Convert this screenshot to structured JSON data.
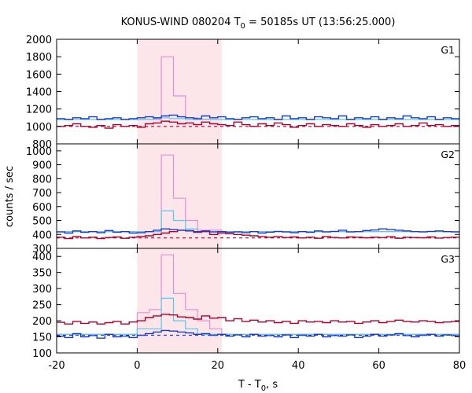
{
  "title": {
    "main": "KONUS-WIND 080204 T",
    "sub": "0",
    "rest": " = 50185s UT (13:56:25.000)"
  },
  "ylabel": "counts / sec",
  "xlabel": {
    "main": "T - T",
    "sub": "0",
    "rest": ", s"
  },
  "colors": {
    "red": "#b0002a",
    "blue": "#1a3cc8",
    "cyan": "#55c8ee",
    "pink": "#e38fd2",
    "dashed": "#b0002a",
    "dashed_blue": "#1a3cc8",
    "highlight": "#fde6ea",
    "axis": "#000000"
  },
  "chart_data": {
    "type": "line",
    "xlim": [
      -20,
      80
    ],
    "xticks": [
      "-20",
      "0",
      "20",
      "40",
      "60",
      "80"
    ],
    "xtick_values": [
      -20,
      0,
      20,
      40,
      60,
      80
    ],
    "highlight_interval": [
      0,
      21
    ],
    "bin_edges": [
      -20,
      -18,
      -16,
      -14,
      -12,
      -10,
      -8,
      -6,
      -4,
      -2,
      0,
      2,
      4,
      6,
      8,
      10,
      12,
      14,
      16,
      18,
      20,
      22,
      24,
      26,
      28,
      30,
      32,
      34,
      36,
      38,
      40,
      42,
      44,
      46,
      48,
      50,
      52,
      54,
      56,
      58,
      60,
      62,
      64,
      66,
      68,
      70,
      72,
      74,
      76,
      78,
      80
    ],
    "panels": [
      {
        "label": "G1",
        "ylim": [
          800,
          2000
        ],
        "yticks": [
          "800",
          "1000",
          "1200",
          "1400",
          "1600",
          "1800",
          "2000"
        ],
        "ytick_values": [
          800,
          1000,
          1200,
          1400,
          1600,
          1800,
          2000
        ],
        "hide_bottom_tick_label": false,
        "background_level": 1000,
        "series": [
          {
            "name": "red",
            "values": [
              1000,
              1010,
              1030,
              1000,
              990,
              1010,
              980,
              1020,
              1000,
              1010,
              990,
              1030,
              1040,
              1060,
              1050,
              1030,
              1040,
              1020,
              1050,
              1030,
              1020,
              1010,
              1050,
              1020,
              1000,
              1030,
              1010,
              1040,
              1020,
              990,
              1010,
              1030,
              1000,
              1020,
              1010,
              1000,
              1030,
              1010,
              990,
              1020,
              1000,
              1010,
              1030,
              1000,
              1010,
              1040,
              1010,
              1020,
              1000,
              1010
            ]
          },
          {
            "name": "blue",
            "values": [
              1090,
              1080,
              1100,
              1090,
              1110,
              1080,
              1090,
              1100,
              1080,
              1090,
              1100,
              1110,
              1100,
              1120,
              1130,
              1110,
              1100,
              1090,
              1120,
              1100,
              1110,
              1090,
              1080,
              1100,
              1110,
              1090,
              1100,
              1080,
              1120,
              1090,
              1100,
              1080,
              1110,
              1100,
              1090,
              1120,
              1080,
              1100,
              1090,
              1110,
              1080,
              1100,
              1090,
              1120,
              1100,
              1090,
              1110,
              1080,
              1100,
              1090
            ]
          },
          {
            "name": "cyan",
            "values": [
              1080,
              1080,
              1080,
              1080,
              1080,
              1080,
              1080,
              1080,
              1080,
              1080,
              1080,
              1080,
              1090,
              1100,
              1090,
              1090,
              1080,
              1080,
              1080,
              1080,
              1080,
              1080,
              1080,
              1080,
              1080,
              1080,
              1080,
              1080,
              1080,
              1080,
              1080,
              1080,
              1080,
              1080,
              1080,
              1080,
              1080,
              1080,
              1080,
              1080,
              1080,
              1080,
              1080,
              1080,
              1080,
              1080,
              1080,
              1080,
              1080,
              1080
            ]
          },
          {
            "name": "pink",
            "bins": [
              [
                0,
                6,
                1080
              ],
              [
                6,
                9,
                1800
              ],
              [
                9,
                12,
                1350
              ],
              [
                12,
                15,
                1100
              ],
              [
                15,
                21,
                1080
              ]
            ]
          }
        ]
      },
      {
        "label": "G2",
        "ylim": [
          300,
          1050
        ],
        "yticks": [
          "300",
          "400",
          "500",
          "600",
          "700",
          "800",
          "900",
          "1000"
        ],
        "ytick_values": [
          300,
          400,
          500,
          600,
          700,
          800,
          900,
          1000
        ],
        "hide_bottom_tick_label": false,
        "background_level": 375,
        "series": [
          {
            "name": "red",
            "values": [
              380,
              370,
              385,
              375,
              380,
              370,
              378,
              382,
              372,
              380,
              385,
              390,
              400,
              410,
              420,
              430,
              425,
              415,
              420,
              400,
              410,
              405,
              400,
              395,
              390,
              385,
              380,
              385,
              378,
              382,
              375,
              380,
              372,
              385,
              378,
              375,
              382,
              380,
              376,
              380,
              378,
              384,
              372,
              380,
              378,
              376,
              382,
              374,
              378,
              380
            ]
          },
          {
            "name": "blue",
            "values": [
              418,
              410,
              425,
              415,
              420,
              412,
              428,
              416,
              420,
              410,
              412,
              420,
              430,
              440,
              435,
              430,
              428,
              420,
              425,
              418,
              420,
              415,
              418,
              412,
              420,
              410,
              416,
              422,
              418,
              412,
              420,
              415,
              425,
              418,
              422,
              430,
              418,
              420,
              428,
              432,
              440,
              435,
              430,
              425,
              420,
              418,
              422,
              425,
              420,
              418
            ]
          },
          {
            "name": "cyan",
            "bins": [
              [
                -20,
                6,
                420
              ],
              [
                6,
                9,
                570
              ],
              [
                9,
                12,
                500
              ],
              [
                12,
                15,
                440
              ],
              [
                15,
                80,
                420
              ]
            ]
          },
          {
            "name": "pink",
            "bins": [
              [
                -20,
                6,
                420
              ],
              [
                6,
                9,
                970
              ],
              [
                9,
                12,
                660
              ],
              [
                12,
                15,
                500
              ],
              [
                15,
                21,
                430
              ],
              [
                21,
                80,
                420
              ]
            ]
          }
        ]
      },
      {
        "label": "G3",
        "ylim": [
          100,
          425
        ],
        "yticks": [
          "100",
          "150",
          "200",
          "250",
          "300",
          "350",
          "400"
        ],
        "ytick_values": [
          100,
          150,
          200,
          250,
          300,
          350,
          400
        ],
        "hide_bottom_tick_label": false,
        "background_level": 155,
        "series": [
          {
            "name": "red",
            "values": [
              195,
              190,
              198,
              192,
              196,
              190,
              194,
              198,
              190,
              196,
              200,
              210,
              215,
              220,
              218,
              212,
              210,
              205,
              215,
              208,
              210,
              200,
              206,
              198,
              202,
              196,
              200,
              194,
              198,
              192,
              200,
              196,
              198,
              194,
              200,
              196,
              198,
              192,
              196,
              200,
              194,
              198,
              202,
              198,
              196,
              200,
              198,
              194,
              196,
              198
            ]
          },
          {
            "name": "blue",
            "values": [
              152,
              148,
              160,
              150,
              154,
              146,
              158,
              150,
              152,
              148,
              155,
              160,
              165,
              170,
              168,
              165,
              162,
              158,
              160,
              155,
              158,
              152,
              156,
              150,
              158,
              152,
              154,
              150,
              156,
              148,
              155,
              152,
              158,
              150,
              154,
              152,
              156,
              148,
              152,
              158,
              152,
              156,
              160,
              154,
              150,
              155,
              158,
              152,
              156,
              154
            ]
          },
          {
            "name": "cyan",
            "bins": [
              [
                -20,
                0,
                158
              ],
              [
                0,
                6,
                175
              ],
              [
                6,
                9,
                270
              ],
              [
                9,
                12,
                200
              ],
              [
                12,
                15,
                175
              ],
              [
                15,
                80,
                158
              ]
            ]
          },
          {
            "name": "pink",
            "bins": [
              [
                -20,
                0,
                158
              ],
              [
                0,
                3,
                225
              ],
              [
                3,
                6,
                235
              ],
              [
                6,
                9,
                405
              ],
              [
                9,
                12,
                285
              ],
              [
                12,
                15,
                235
              ],
              [
                15,
                18,
                200
              ],
              [
                18,
                21,
                175
              ],
              [
                21,
                80,
                158
              ]
            ]
          }
        ]
      }
    ]
  }
}
